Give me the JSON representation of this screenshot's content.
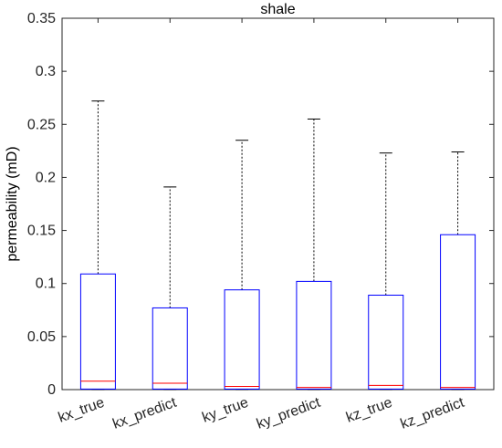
{
  "chart_data": {
    "type": "box",
    "title": "shale",
    "xlabel": "",
    "ylabel": "permeability (mD)",
    "ylim": [
      0,
      0.35
    ],
    "yticks": [
      0,
      0.05,
      0.1,
      0.15,
      0.2,
      0.25,
      0.3,
      0.35
    ],
    "ytick_labels": [
      "0",
      "0.05",
      "0.1",
      "0.15",
      "0.2",
      "0.25",
      "0.3",
      "0.35"
    ],
    "categories": [
      "kx_true",
      "kx_predict",
      "ky_true",
      "ky_predict",
      "kz_true",
      "kz_predict"
    ],
    "boxes": [
      {
        "label": "kx_true",
        "min": 0,
        "q1": 0.0005,
        "median": 0.008,
        "q3": 0.109,
        "max": 0.272
      },
      {
        "label": "kx_predict",
        "min": 0,
        "q1": 0.0005,
        "median": 0.006,
        "q3": 0.077,
        "max": 0.191
      },
      {
        "label": "ky_true",
        "min": 0,
        "q1": 0.0005,
        "median": 0.003,
        "q3": 0.094,
        "max": 0.235
      },
      {
        "label": "ky_predict",
        "min": 0,
        "q1": 0.0005,
        "median": 0.002,
        "q3": 0.102,
        "max": 0.255
      },
      {
        "label": "kz_true",
        "min": 0,
        "q1": 0.0005,
        "median": 0.004,
        "q3": 0.089,
        "max": 0.223
      },
      {
        "label": "kz_predict",
        "min": 0,
        "q1": 0.0005,
        "median": 0.002,
        "q3": 0.146,
        "max": 0.224
      }
    ],
    "colors": {
      "box": "#0000ff",
      "median": "#ff0000",
      "whisker": "#000000",
      "axis": "#262626"
    },
    "grid": false,
    "legend": "none"
  }
}
